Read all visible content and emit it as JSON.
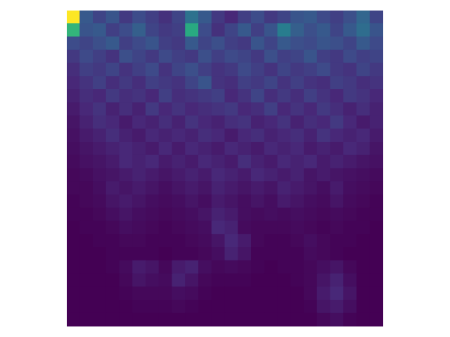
{
  "chart_data": {
    "type": "heatmap",
    "color": "viridis",
    "tick_labels": false,
    "grid": false,
    "cells": [
      [
        95,
        30,
        22,
        28,
        18,
        25,
        20,
        15,
        22,
        40,
        30,
        18,
        12,
        20,
        25,
        18,
        22,
        28,
        30,
        24,
        20,
        26,
        35,
        22
      ],
      [
        70,
        28,
        30,
        20,
        25,
        32,
        22,
        18,
        20,
        65,
        25,
        15,
        22,
        30,
        20,
        28,
        45,
        32,
        26,
        30,
        22,
        30,
        38,
        28
      ],
      [
        25,
        22,
        26,
        30,
        20,
        24,
        28,
        20,
        18,
        30,
        22,
        26,
        20,
        18,
        28,
        22,
        30,
        26,
        24,
        28,
        26,
        22,
        30,
        24
      ],
      [
        18,
        24,
        20,
        16,
        26,
        22,
        18,
        24,
        20,
        18,
        26,
        20,
        24,
        22,
        18,
        26,
        20,
        22,
        28,
        20,
        18,
        24,
        20,
        22
      ],
      [
        14,
        20,
        18,
        22,
        16,
        20,
        24,
        16,
        22,
        26,
        20,
        16,
        18,
        24,
        20,
        16,
        22,
        18,
        20,
        24,
        18,
        16,
        22,
        18
      ],
      [
        12,
        16,
        20,
        14,
        18,
        14,
        20,
        18,
        16,
        22,
        28,
        16,
        14,
        20,
        18,
        22,
        16,
        20,
        16,
        14,
        20,
        18,
        14,
        16
      ],
      [
        10,
        14,
        12,
        18,
        14,
        16,
        12,
        20,
        14,
        16,
        18,
        20,
        12,
        16,
        22,
        14,
        18,
        14,
        20,
        16,
        12,
        18,
        16,
        12
      ],
      [
        8,
        12,
        16,
        10,
        14,
        10,
        18,
        12,
        16,
        12,
        14,
        16,
        18,
        12,
        14,
        20,
        12,
        16,
        12,
        18,
        14,
        10,
        14,
        10
      ],
      [
        6,
        10,
        14,
        12,
        8,
        12,
        10,
        14,
        10,
        16,
        12,
        10,
        14,
        16,
        10,
        12,
        16,
        10,
        14,
        12,
        18,
        12,
        8,
        10
      ],
      [
        5,
        8,
        10,
        14,
        10,
        8,
        12,
        10,
        12,
        10,
        14,
        12,
        8,
        12,
        14,
        10,
        12,
        14,
        10,
        16,
        12,
        10,
        12,
        8
      ],
      [
        4,
        6,
        8,
        10,
        12,
        10,
        8,
        12,
        8,
        12,
        10,
        8,
        12,
        10,
        8,
        12,
        10,
        12,
        8,
        10,
        8,
        12,
        10,
        6
      ],
      [
        3,
        5,
        6,
        8,
        12,
        10,
        12,
        8,
        10,
        8,
        12,
        10,
        8,
        14,
        10,
        8,
        12,
        10,
        12,
        8,
        10,
        8,
        6,
        5
      ],
      [
        2,
        3,
        5,
        6,
        8,
        10,
        8,
        6,
        8,
        10,
        8,
        12,
        10,
        8,
        12,
        10,
        8,
        10,
        6,
        8,
        6,
        5,
        4,
        3
      ],
      [
        2,
        2,
        4,
        8,
        6,
        8,
        6,
        4,
        6,
        8,
        6,
        10,
        8,
        6,
        8,
        6,
        10,
        8,
        6,
        4,
        8,
        4,
        3,
        2
      ],
      [
        1,
        2,
        3,
        6,
        8,
        6,
        4,
        3,
        4,
        6,
        4,
        8,
        6,
        4,
        6,
        4,
        8,
        6,
        4,
        3,
        6,
        3,
        2,
        1
      ],
      [
        1,
        1,
        2,
        4,
        6,
        4,
        3,
        2,
        3,
        4,
        6,
        10,
        8,
        4,
        3,
        4,
        3,
        4,
        3,
        2,
        3,
        2,
        1,
        1
      ],
      [
        0,
        1,
        1,
        2,
        4,
        3,
        2,
        1,
        2,
        3,
        4,
        12,
        10,
        3,
        2,
        2,
        2,
        3,
        2,
        1,
        2,
        1,
        1,
        0
      ],
      [
        0,
        0,
        1,
        1,
        2,
        2,
        1,
        1,
        1,
        2,
        3,
        6,
        12,
        8,
        2,
        1,
        1,
        2,
        4,
        2,
        1,
        1,
        0,
        0
      ],
      [
        0,
        0,
        0,
        1,
        1,
        1,
        1,
        0,
        1,
        1,
        2,
        4,
        10,
        6,
        1,
        1,
        1,
        1,
        3,
        2,
        1,
        0,
        0,
        0
      ],
      [
        0,
        0,
        0,
        1,
        3,
        8,
        6,
        2,
        8,
        10,
        4,
        2,
        3,
        2,
        1,
        0,
        1,
        1,
        2,
        4,
        6,
        2,
        0,
        0
      ],
      [
        0,
        0,
        0,
        0,
        2,
        6,
        4,
        3,
        10,
        6,
        2,
        1,
        1,
        1,
        0,
        0,
        0,
        1,
        2,
        6,
        10,
        4,
        0,
        0
      ],
      [
        0,
        0,
        0,
        0,
        1,
        2,
        2,
        2,
        4,
        3,
        1,
        0,
        0,
        0,
        0,
        0,
        0,
        0,
        2,
        8,
        12,
        6,
        0,
        0
      ],
      [
        0,
        0,
        0,
        0,
        0,
        1,
        1,
        1,
        2,
        1,
        0,
        0,
        0,
        0,
        0,
        0,
        0,
        0,
        1,
        6,
        8,
        4,
        0,
        0
      ],
      [
        0,
        0,
        0,
        0,
        0,
        0,
        0,
        0,
        0,
        0,
        0,
        0,
        0,
        0,
        0,
        0,
        0,
        0,
        0,
        2,
        4,
        1,
        0,
        0
      ]
    ]
  }
}
